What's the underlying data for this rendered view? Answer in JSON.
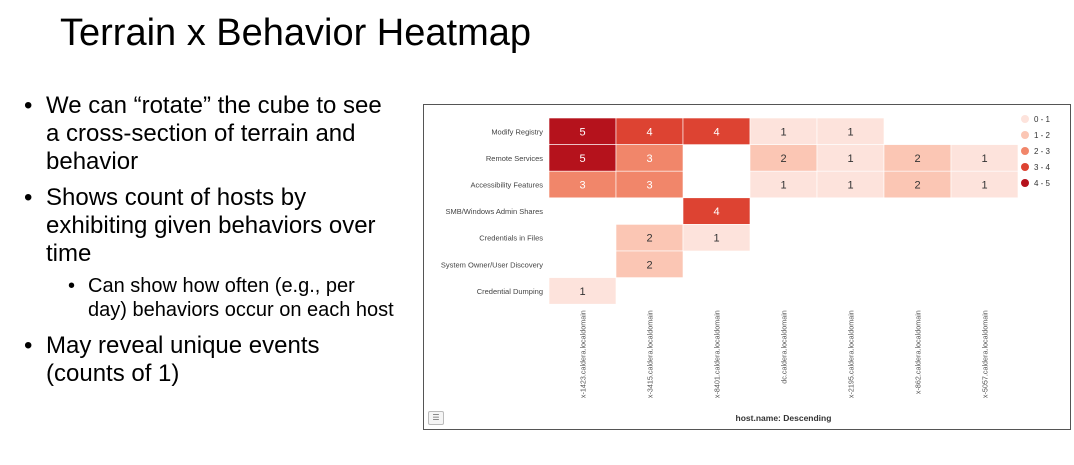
{
  "slide": {
    "title": "Terrain x Behavior Heatmap",
    "bullets": [
      "We can “rotate” the cube to see a cross-section of terrain and behavior",
      "Shows count of hosts by exhibiting given behaviors over time",
      "May reveal unique events (counts of 1)"
    ],
    "sub_bullet": "Can show how often (e.g., per day) behaviors occur on each host"
  },
  "chart_data": {
    "type": "heatmap",
    "xlabel": "host.name: Descending",
    "x": [
      "x-1423.caldera.localdomain",
      "x-3415.caldera.localdomain",
      "x-8401.caldera.localdomain",
      "dc.caldera.localdomain",
      "x-2195.caldera.localdomain",
      "x-862.caldera.localdomain",
      "x-5057.caldera.localdomain"
    ],
    "y": [
      "Modify Registry",
      "Remote Services",
      "Accessibility Features",
      "SMB/Windows Admin Shares",
      "Credentials in Files",
      "System Owner/User Discovery",
      "Credential Dumping"
    ],
    "values": [
      [
        5,
        4,
        4,
        1,
        1,
        null,
        null
      ],
      [
        5,
        3,
        null,
        2,
        1,
        2,
        1
      ],
      [
        3,
        3,
        null,
        1,
        1,
        2,
        1
      ],
      [
        null,
        null,
        4,
        null,
        null,
        null,
        null
      ],
      [
        null,
        2,
        1,
        null,
        null,
        null,
        null
      ],
      [
        null,
        2,
        null,
        null,
        null,
        null,
        null
      ],
      [
        1,
        null,
        null,
        null,
        null,
        null,
        null
      ]
    ],
    "legend": {
      "placement": "top-right",
      "bins": [
        {
          "label": "0 - 1",
          "color": "#fde3dc"
        },
        {
          "label": "1 - 2",
          "color": "#fbc6b4"
        },
        {
          "label": "2 - 3",
          "color": "#f1866a"
        },
        {
          "label": "3 - 4",
          "color": "#dd4332"
        },
        {
          "label": "4 - 5",
          "color": "#b5121c"
        }
      ]
    }
  }
}
